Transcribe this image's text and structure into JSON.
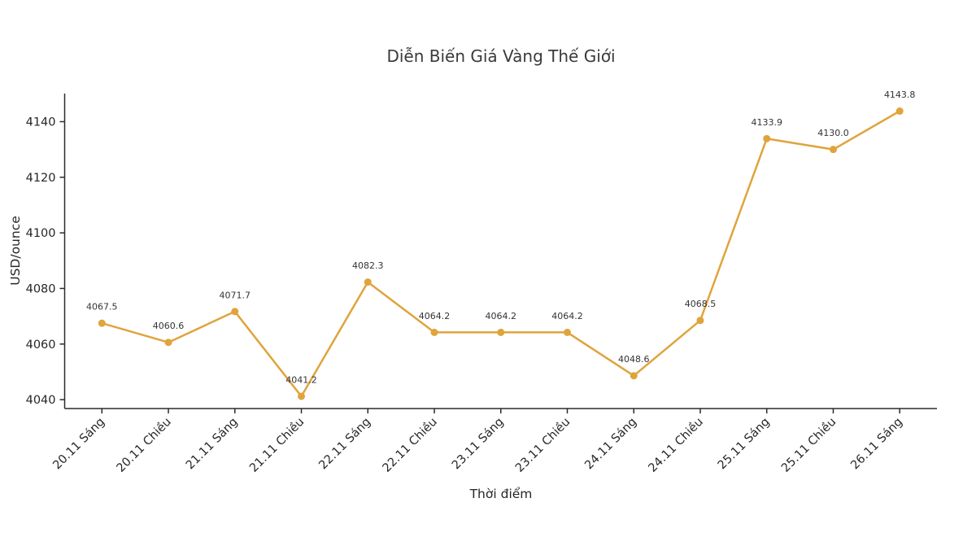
{
  "chart_data": {
    "type": "line",
    "title": "Diễn Biến Giá Vàng Thế Giới",
    "xlabel": "Thời điểm",
    "ylabel": "USD/ounce",
    "categories": [
      "20.11 Sáng",
      "20.11 Chiều",
      "21.11 Sáng",
      "21.11 Chiều",
      "22.11 Sáng",
      "22.11 Chiều",
      "23.11 Sáng",
      "23.11 Chiều",
      "24.11 Sáng",
      "24.11 Chiều",
      "25.11 Sáng",
      "25.11 Chiều",
      "26.11 Sáng"
    ],
    "values": [
      4067.5,
      4060.6,
      4071.7,
      4041.2,
      4082.3,
      4064.2,
      4064.2,
      4064.2,
      4048.6,
      4068.5,
      4133.9,
      4130.0,
      4143.8
    ],
    "point_labels": [
      "4067.5",
      "4060.6",
      "4071.7",
      "4041.2",
      "4082.3",
      "4064.2",
      "4064.2",
      "4064.2",
      "4048.6",
      "4068.5",
      "4133.9",
      "4130.0",
      "4143.8"
    ],
    "yticks": [
      4040,
      4060,
      4080,
      4100,
      4120,
      4140
    ],
    "ylim": [
      4036.8,
      4150.1
    ],
    "xtick_rotation": 45,
    "grid": false,
    "legend": "none",
    "colors": {
      "line": "#DFA43C",
      "marker": "#DFA43C",
      "axis": "#2b2b2b",
      "text": "#262626"
    }
  }
}
